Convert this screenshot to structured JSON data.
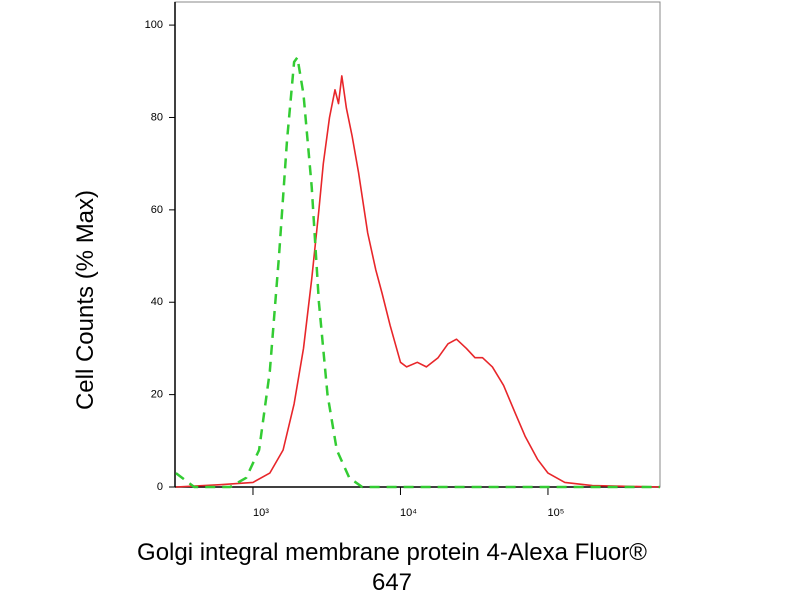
{
  "chart_data": {
    "type": "line",
    "log_x": true,
    "ylabel": "Cell Counts (% Max)",
    "xlabel": [
      "Golgi integral membrane protein 4-Alexa Fluor®",
      "647"
    ],
    "xlim": [
      296,
      575000
    ],
    "ylim": [
      0,
      105
    ],
    "xticks": [
      {
        "value": 1000,
        "label": "10³"
      },
      {
        "value": 10000,
        "label": "10⁴"
      },
      {
        "value": 100000,
        "label": "10⁵"
      }
    ],
    "yticks": [
      0,
      20,
      40,
      60,
      80,
      100
    ],
    "series": [
      {
        "color": "#e8262a",
        "dash": false,
        "x": [
          300,
          600,
          1000,
          1300,
          1600,
          1900,
          2200,
          2500,
          2800,
          3000,
          3300,
          3600,
          3800,
          4000,
          4300,
          4700,
          5200,
          6000,
          6800,
          7500,
          8500,
          10000,
          11000,
          13000,
          15000,
          18000,
          21000,
          24000,
          28000,
          32000,
          36000,
          42000,
          50000,
          60000,
          70000,
          85000,
          100000,
          130000,
          200000,
          575000
        ],
        "values": [
          0,
          0.5,
          1,
          3,
          8,
          18,
          30,
          45,
          60,
          70,
          80,
          86,
          83,
          89,
          82,
          76,
          68,
          55,
          47,
          42,
          35,
          27,
          26,
          27,
          26,
          28,
          31,
          32,
          30,
          28,
          28,
          26,
          22,
          16,
          11,
          6,
          3,
          1,
          0.3,
          0
        ]
      },
      {
        "color": "#33cc33",
        "dash": true,
        "x": [
          300,
          400,
          700,
          900,
          1100,
          1300,
          1500,
          1700,
          1900,
          2000,
          2200,
          2500,
          2800,
          3200,
          3700,
          4500,
          5500,
          575000
        ],
        "values": [
          3,
          0,
          0,
          2,
          8,
          25,
          50,
          75,
          92,
          93,
          85,
          65,
          40,
          20,
          8,
          2,
          0,
          0
        ]
      }
    ]
  }
}
